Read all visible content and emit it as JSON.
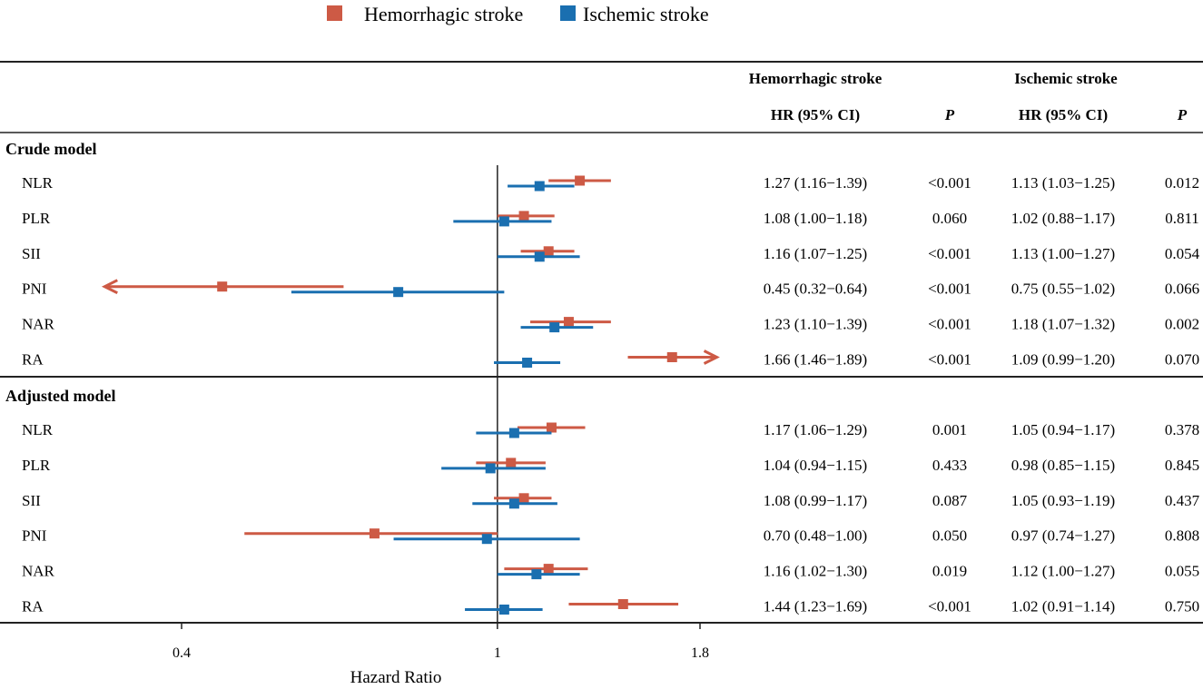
{
  "colors": {
    "hemorrhagic": "#cd5a45",
    "ischemic": "#1a6fb0",
    "line": "#222222"
  },
  "legend": {
    "hemorrhagic_label": "Hemorrhagic stroke",
    "ischemic_label": "Ischemic stroke"
  },
  "headers": {
    "group_hem": "Hemorrhagic stroke",
    "group_isc": "Ischemic stroke",
    "hr_hem": "HR (95% CI)",
    "p_hem": "P",
    "hr_isc": "HR (95% CI)",
    "p_isc": "P"
  },
  "sections": [
    {
      "title": "Crude model",
      "rows": [
        {
          "label": "NLR",
          "hem": {
            "hr": 1.27,
            "lo": 1.16,
            "hi": 1.39,
            "text": "1.27 (1.16−1.39)",
            "p": "<0.001"
          },
          "isc": {
            "hr": 1.13,
            "lo": 1.03,
            "hi": 1.25,
            "text": "1.13 (1.03−1.25)",
            "p": "0.012"
          }
        },
        {
          "label": "PLR",
          "hem": {
            "hr": 1.08,
            "lo": 1.0,
            "hi": 1.18,
            "text": "1.08 (1.00−1.18)",
            "p": "0.060"
          },
          "isc": {
            "hr": 1.02,
            "lo": 0.88,
            "hi": 1.17,
            "text": "1.02 (0.88−1.17)",
            "p": "0.811"
          }
        },
        {
          "label": "SII",
          "hem": {
            "hr": 1.16,
            "lo": 1.07,
            "hi": 1.25,
            "text": "1.16 (1.07−1.25)",
            "p": "<0.001"
          },
          "isc": {
            "hr": 1.13,
            "lo": 1.0,
            "hi": 1.27,
            "text": "1.13 (1.00−1.27)",
            "p": "0.054"
          }
        },
        {
          "label": "PNI",
          "hem": {
            "hr": 0.45,
            "lo": 0.32,
            "hi": 0.64,
            "text": "0.45 (0.32−0.64)",
            "p": "<0.001",
            "arrow": "left"
          },
          "isc": {
            "hr": 0.75,
            "lo": 0.55,
            "hi": 1.02,
            "text": "0.75 (0.55−1.02)",
            "p": "0.066"
          }
        },
        {
          "label": "NAR",
          "hem": {
            "hr": 1.23,
            "lo": 1.1,
            "hi": 1.39,
            "text": "1.23 (1.10−1.39)",
            "p": "<0.001"
          },
          "isc": {
            "hr": 1.18,
            "lo": 1.07,
            "hi": 1.32,
            "text": "1.18 (1.07−1.32)",
            "p": "0.002"
          }
        },
        {
          "label": "RA",
          "hem": {
            "hr": 1.66,
            "lo": 1.46,
            "hi": 1.89,
            "text": "1.66 (1.46−1.89)",
            "p": "<0.001",
            "arrow": "right"
          },
          "isc": {
            "hr": 1.09,
            "lo": 0.99,
            "hi": 1.2,
            "text": "1.09 (0.99−1.20)",
            "p": "0.070"
          }
        }
      ]
    },
    {
      "title": "Adjusted model",
      "rows": [
        {
          "label": "NLR",
          "hem": {
            "hr": 1.17,
            "lo": 1.06,
            "hi": 1.29,
            "text": "1.17 (1.06−1.29)",
            "p": "0.001"
          },
          "isc": {
            "hr": 1.05,
            "lo": 0.94,
            "hi": 1.17,
            "text": "1.05 (0.94−1.17)",
            "p": "0.378"
          }
        },
        {
          "label": "PLR",
          "hem": {
            "hr": 1.04,
            "lo": 0.94,
            "hi": 1.15,
            "text": "1.04 (0.94−1.15)",
            "p": "0.433"
          },
          "isc": {
            "hr": 0.98,
            "lo": 0.85,
            "hi": 1.15,
            "text": "0.98 (0.85−1.15)",
            "p": "0.845"
          }
        },
        {
          "label": "SII",
          "hem": {
            "hr": 1.08,
            "lo": 0.99,
            "hi": 1.17,
            "text": "1.08 (0.99−1.17)",
            "p": "0.087"
          },
          "isc": {
            "hr": 1.05,
            "lo": 0.93,
            "hi": 1.19,
            "text": "1.05 (0.93−1.19)",
            "p": "0.437"
          }
        },
        {
          "label": "PNI",
          "hem": {
            "hr": 0.7,
            "lo": 0.48,
            "hi": 1.0,
            "text": "0.70 (0.48−1.00)",
            "p": "0.050"
          },
          "isc": {
            "hr": 0.97,
            "lo": 0.74,
            "hi": 1.27,
            "text": "0.97 (0.74−1.27)",
            "p": "0.808"
          }
        },
        {
          "label": "NAR",
          "hem": {
            "hr": 1.16,
            "lo": 1.02,
            "hi": 1.3,
            "text": "1.16 (1.02−1.30)",
            "p": "0.019"
          },
          "isc": {
            "hr": 1.12,
            "lo": 1.0,
            "hi": 1.27,
            "text": "1.12 (1.00−1.27)",
            "p": "0.055"
          }
        },
        {
          "label": "RA",
          "hem": {
            "hr": 1.44,
            "lo": 1.23,
            "hi": 1.69,
            "text": "1.44 (1.23−1.69)",
            "p": "<0.001"
          },
          "isc": {
            "hr": 1.02,
            "lo": 0.91,
            "hi": 1.14,
            "text": "1.02 (0.91−1.14)",
            "p": "0.750"
          }
        }
      ]
    }
  ],
  "chart_data": {
    "type": "scatter",
    "subtype": "forest-plot",
    "xlabel": "Hazard Ratio",
    "xscale": "log",
    "xticks": [
      0.4,
      1,
      1.8
    ],
    "xtick_labels": [
      "0.4",
      "1",
      "1.8"
    ],
    "reference_line": 1,
    "series": [
      {
        "name": "Hemorrhagic stroke",
        "color": "#cd5a45"
      },
      {
        "name": "Ischemic stroke",
        "color": "#1a6fb0"
      }
    ],
    "legend_position": "top-center"
  }
}
